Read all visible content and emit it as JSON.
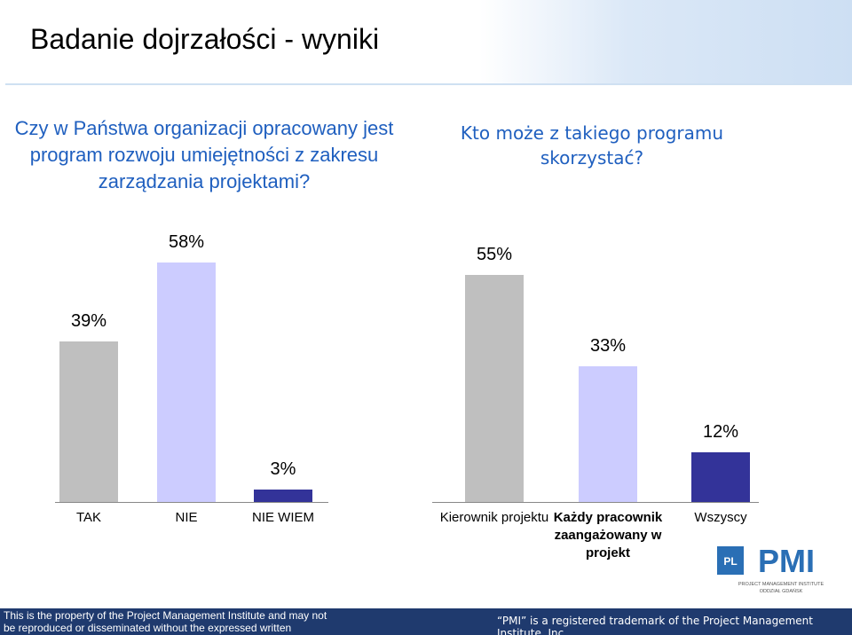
{
  "title": "Badanie dojrzałości - wyniki",
  "chart_data": [
    {
      "type": "bar",
      "title": "Czy w Państwa organizacji opracowany jest program rozwoju umiejętności z zakresu zarządzania projektami?",
      "categories": [
        "TAK",
        "NIE",
        "NIE WIEM"
      ],
      "values": [
        39,
        58,
        3
      ],
      "value_labels": [
        "39%",
        "58%",
        "3%"
      ],
      "colors": [
        "#bfbfbf",
        "#ccccff",
        "#333399"
      ]
    },
    {
      "type": "bar",
      "title": "Kto może z takiego programu skorzystać?",
      "categories": [
        "Kierownik projektu",
        "Każdy pracownik zaangażowany w projekt",
        "Wszyscy"
      ],
      "values": [
        55,
        33,
        12
      ],
      "value_labels": [
        "55%",
        "33%",
        "12%"
      ],
      "colors": [
        "#bfbfbf",
        "#ccccff",
        "#333399"
      ]
    }
  ],
  "logo": {
    "badge": "PL",
    "name": "PMI",
    "line1": "PROJECT MANAGEMENT INSTITUTE",
    "line2": "ODDZIAŁ GDAŃSK"
  },
  "footer": {
    "left": "This is the property of the Project Management Institute and may not be reproduced or disseminated without the expressed written permission of PMI.",
    "right": "“PMI” is a registered trademark of the Project Management Institute, Inc."
  }
}
